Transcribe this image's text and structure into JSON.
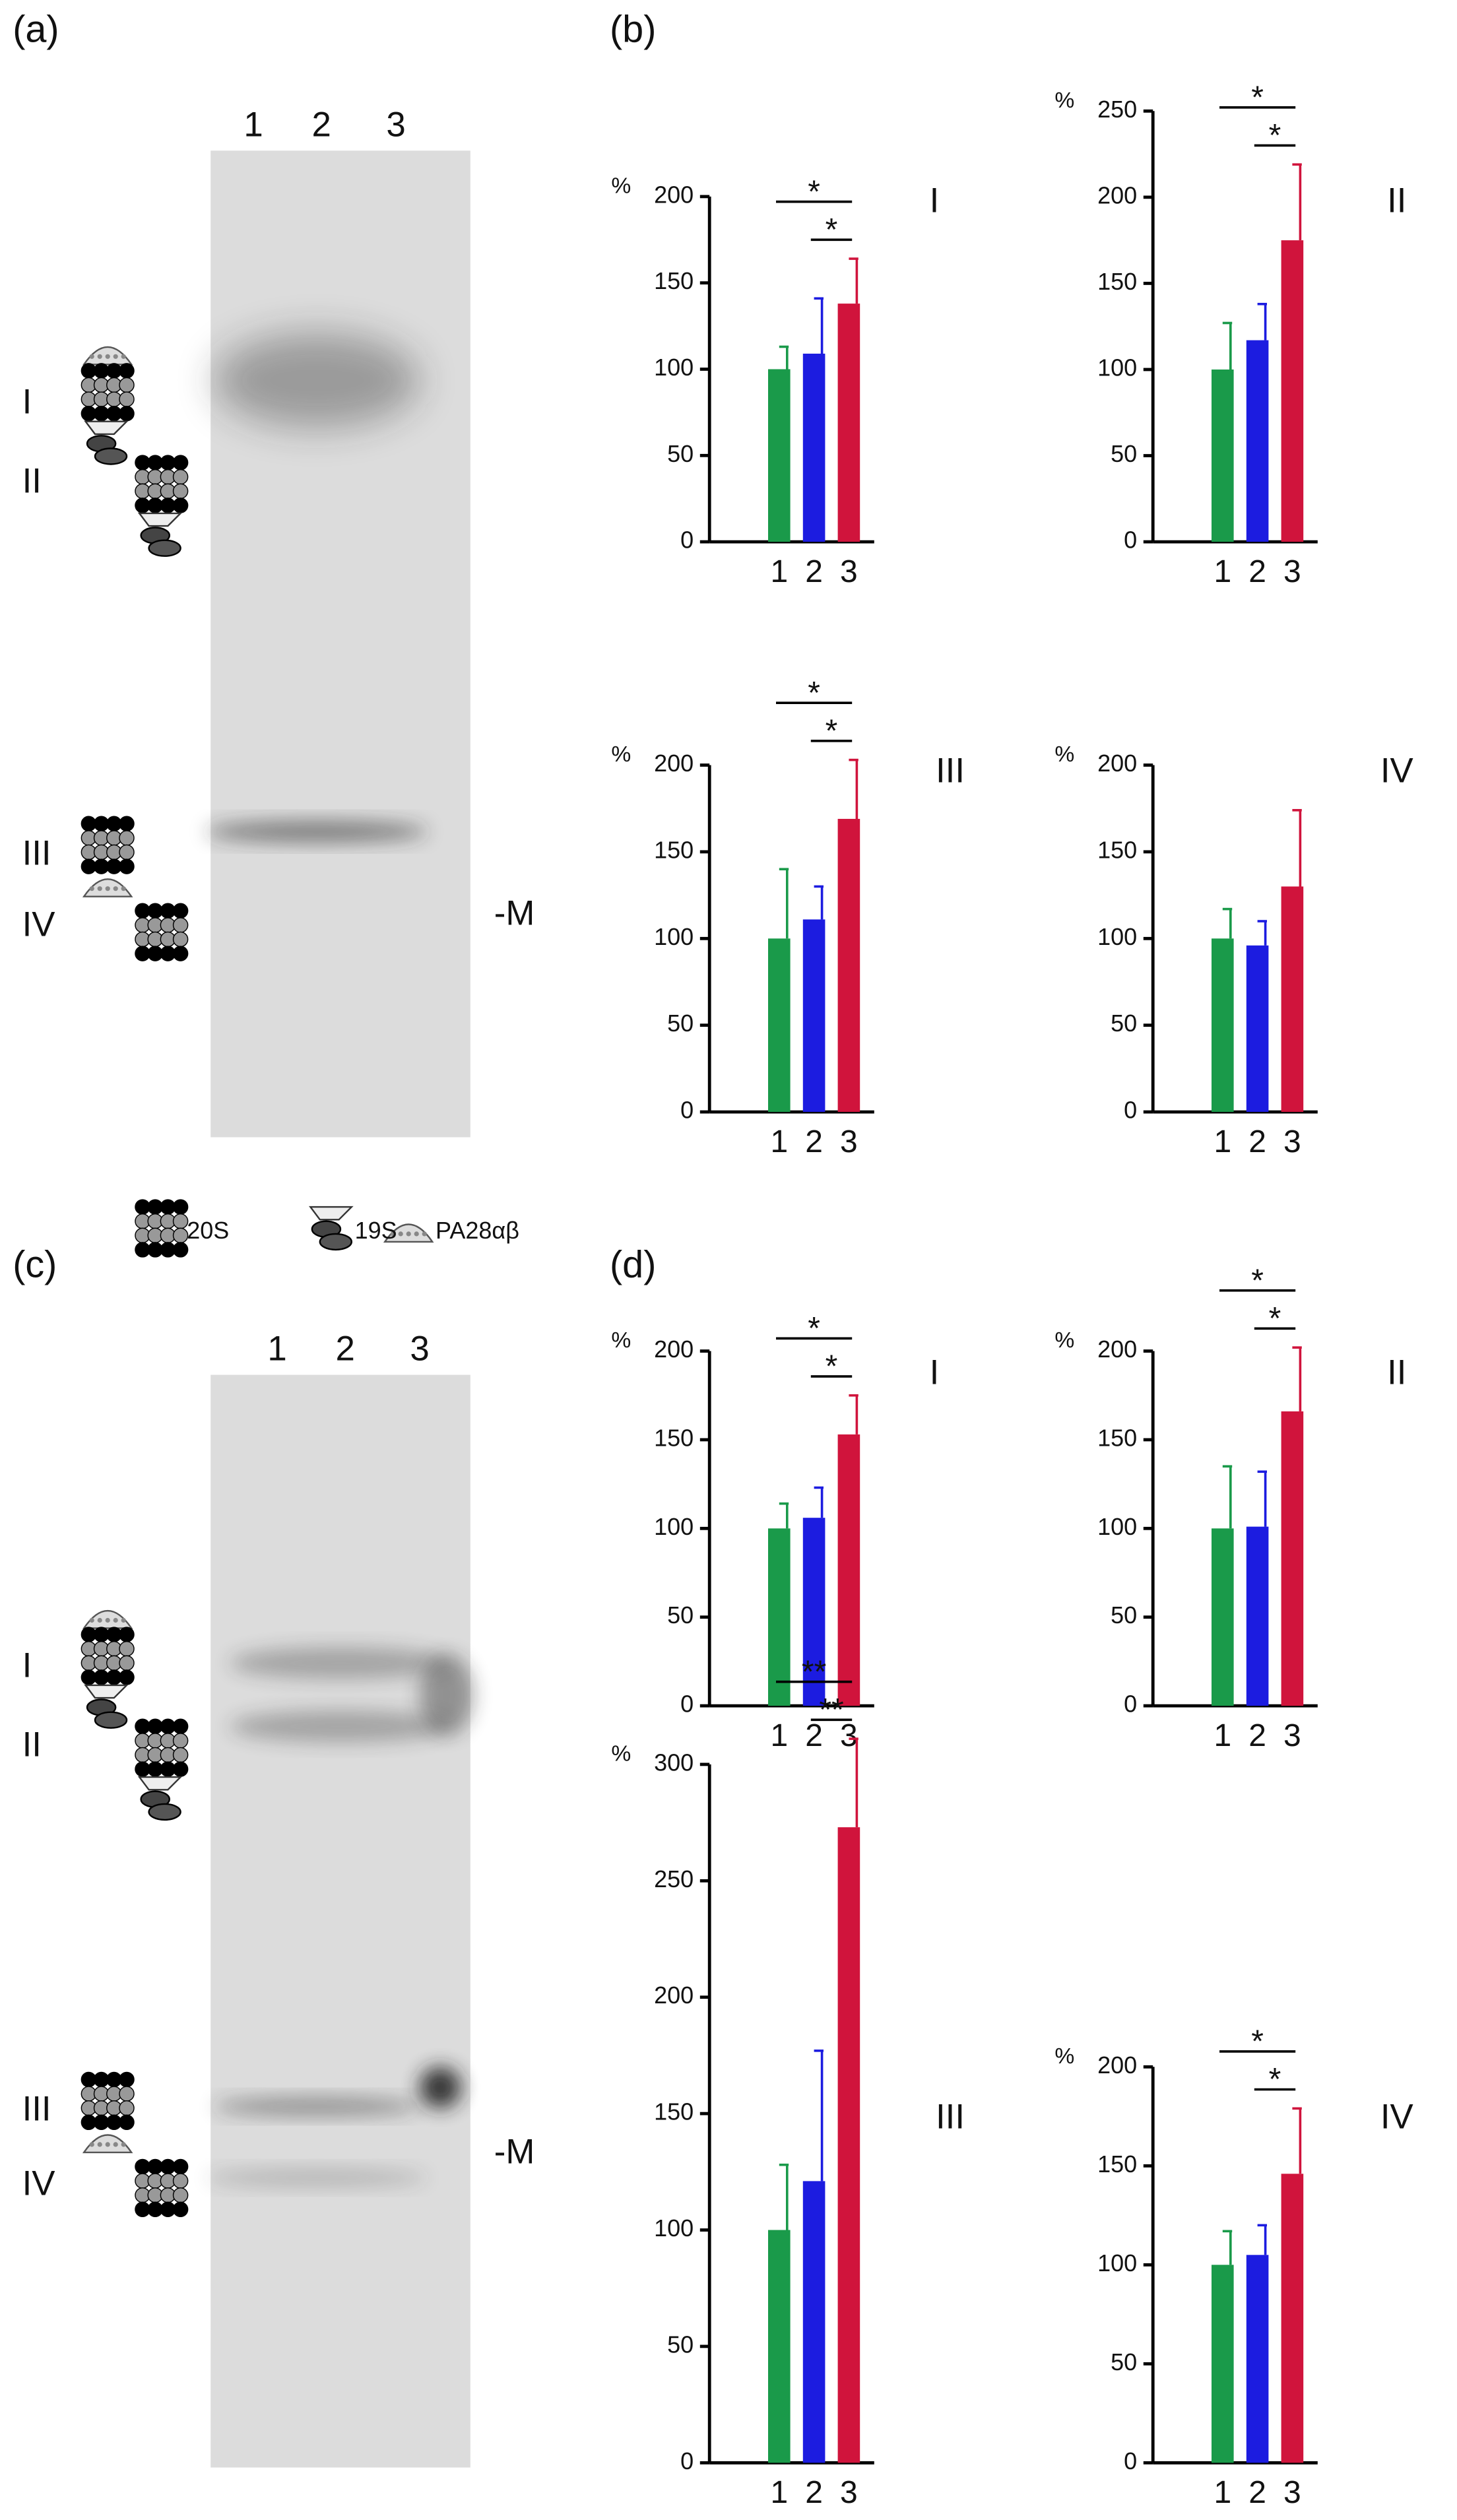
{
  "figure": {
    "panel_labels": [
      "(a)",
      "(b)",
      "(c)",
      "(d)"
    ],
    "gels": [
      {
        "lanes": [
          "1",
          "2",
          "3"
        ],
        "complexes": [
          "I",
          "II",
          "III",
          "IV"
        ],
        "marker": "-M"
      },
      {
        "lanes": [
          "1",
          "2",
          "3"
        ],
        "complexes": [
          "I",
          "II",
          "III",
          "IV"
        ],
        "marker": "-M"
      }
    ],
    "legend": [
      "20S",
      "19S",
      "PA28αβ"
    ]
  },
  "chart_data": [
    {
      "type": "bar",
      "title": "I",
      "y_label": "%",
      "categories": [
        "1",
        "2",
        "3"
      ],
      "values": [
        100,
        109,
        138
      ],
      "errors": [
        13,
        32,
        26
      ],
      "colors": [
        "#1a9a4a",
        "#1c1ce0",
        "#d0143c"
      ],
      "ylim": [
        0,
        200
      ],
      "yticks": [
        0,
        50,
        100,
        150,
        200
      ],
      "significance": [
        {
          "label": "*",
          "groups": [
            "1",
            "3"
          ]
        },
        {
          "label": "*",
          "groups": [
            "2",
            "3"
          ]
        }
      ]
    },
    {
      "type": "bar",
      "title": "II",
      "y_label": "%",
      "categories": [
        "1",
        "2",
        "3"
      ],
      "values": [
        100,
        117,
        175
      ],
      "errors": [
        27,
        21,
        44
      ],
      "colors": [
        "#1a9a4a",
        "#1c1ce0",
        "#d0143c"
      ],
      "ylim": [
        0,
        250
      ],
      "yticks": [
        0,
        50,
        100,
        150,
        200,
        250
      ],
      "significance": [
        {
          "label": "*",
          "groups": [
            "1",
            "3"
          ]
        },
        {
          "label": "*",
          "groups": [
            "2",
            "3"
          ]
        }
      ]
    },
    {
      "type": "bar",
      "title": "III",
      "y_label": "%",
      "categories": [
        "1",
        "2",
        "3"
      ],
      "values": [
        100,
        111,
        169
      ],
      "errors": [
        40,
        19,
        34
      ],
      "colors": [
        "#1a9a4a",
        "#1c1ce0",
        "#d0143c"
      ],
      "ylim": [
        0,
        200
      ],
      "yticks": [
        0,
        50,
        100,
        150,
        200
      ],
      "significance": [
        {
          "label": "*",
          "groups": [
            "1",
            "3"
          ]
        },
        {
          "label": "*",
          "groups": [
            "2",
            "3"
          ]
        }
      ]
    },
    {
      "type": "bar",
      "title": "IV",
      "y_label": "%",
      "categories": [
        "1",
        "2",
        "3"
      ],
      "values": [
        100,
        96,
        130
      ],
      "errors": [
        17,
        14,
        44
      ],
      "colors": [
        "#1a9a4a",
        "#1c1ce0",
        "#d0143c"
      ],
      "ylim": [
        0,
        200
      ],
      "yticks": [
        0,
        50,
        100,
        150,
        200
      ],
      "significance": []
    },
    {
      "type": "bar",
      "title": "I",
      "y_label": "%",
      "categories": [
        "1",
        "2",
        "3"
      ],
      "values": [
        100,
        106,
        153
      ],
      "errors": [
        14,
        17,
        22
      ],
      "colors": [
        "#1a9a4a",
        "#1c1ce0",
        "#d0143c"
      ],
      "ylim": [
        0,
        200
      ],
      "yticks": [
        0,
        50,
        100,
        150,
        200
      ],
      "significance": [
        {
          "label": "*",
          "groups": [
            "1",
            "3"
          ]
        },
        {
          "label": "*",
          "groups": [
            "2",
            "3"
          ]
        }
      ]
    },
    {
      "type": "bar",
      "title": "II",
      "y_label": "%",
      "categories": [
        "1",
        "2",
        "3"
      ],
      "values": [
        100,
        101,
        166
      ],
      "errors": [
        35,
        31,
        36
      ],
      "colors": [
        "#1a9a4a",
        "#1c1ce0",
        "#d0143c"
      ],
      "ylim": [
        0,
        200
      ],
      "yticks": [
        0,
        50,
        100,
        150,
        200
      ],
      "significance": [
        {
          "label": "*",
          "groups": [
            "1",
            "3"
          ]
        },
        {
          "label": "*",
          "groups": [
            "2",
            "3"
          ]
        }
      ]
    },
    {
      "type": "bar",
      "title": "III",
      "y_label": "%",
      "categories": [
        "1",
        "2",
        "3"
      ],
      "values": [
        100,
        121,
        273
      ],
      "errors": [
        28,
        56,
        38
      ],
      "colors": [
        "#1a9a4a",
        "#1c1ce0",
        "#d0143c"
      ],
      "ylim": [
        0,
        300
      ],
      "yticks": [
        0,
        50,
        100,
        150,
        200,
        250,
        300
      ],
      "significance": [
        {
          "label": "**",
          "groups": [
            "1",
            "3"
          ]
        },
        {
          "label": "**",
          "groups": [
            "2",
            "3"
          ]
        }
      ]
    },
    {
      "type": "bar",
      "title": "IV",
      "y_label": "%",
      "categories": [
        "1",
        "2",
        "3"
      ],
      "values": [
        100,
        105,
        146
      ],
      "errors": [
        17,
        15,
        33
      ],
      "colors": [
        "#1a9a4a",
        "#1c1ce0",
        "#d0143c"
      ],
      "ylim": [
        0,
        200
      ],
      "yticks": [
        0,
        50,
        100,
        150,
        200
      ],
      "significance": [
        {
          "label": "*",
          "groups": [
            "1",
            "3"
          ]
        },
        {
          "label": "*",
          "groups": [
            "2",
            "3"
          ]
        }
      ]
    }
  ]
}
